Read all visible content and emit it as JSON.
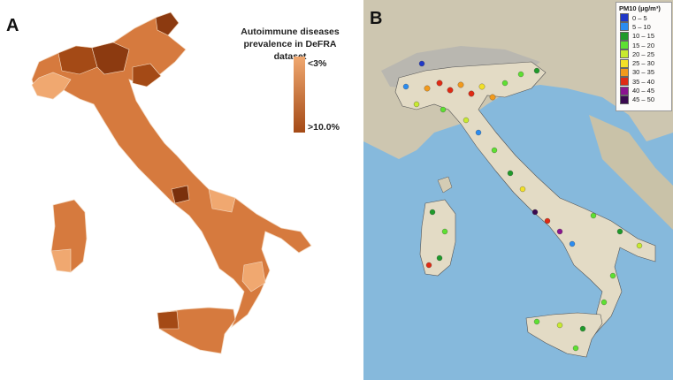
{
  "panelA": {
    "letter": "A",
    "title_line1": "Autoimmune diseases",
    "title_line2": "prevalence in DeFRA dataset",
    "legend_low": "<3%",
    "legend_high": ">10.0%",
    "colors": {
      "low": "#f0a870",
      "high": "#a44a16",
      "mid": "#d67a3e"
    }
  },
  "panelB": {
    "letter": "B",
    "legend_title": "PM10 (µg/m³)",
    "legend": [
      {
        "label": "0 – 5",
        "color": "#2038c8"
      },
      {
        "label": "5 – 10",
        "color": "#2b8cf0"
      },
      {
        "label": "10 – 15",
        "color": "#1f9a2a"
      },
      {
        "label": "15 – 20",
        "color": "#5ee032"
      },
      {
        "label": "20 – 25",
        "color": "#c8ea30"
      },
      {
        "label": "25 – 30",
        "color": "#f2e028"
      },
      {
        "label": "30 – 35",
        "color": "#f29a1c"
      },
      {
        "label": "35 – 40",
        "color": "#e02a14"
      },
      {
        "label": "40 – 45",
        "color": "#8a1490"
      },
      {
        "label": "45 – 50",
        "color": "#3a0a50"
      }
    ],
    "colors": {
      "sea": "#86b9dc",
      "land": "#d6ccb2",
      "alps": "#b9b7b0"
    }
  }
}
